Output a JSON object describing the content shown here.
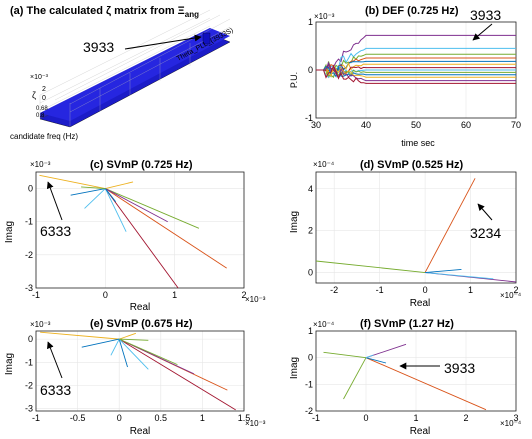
{
  "figure": {
    "panel_a": {
      "title": "(a) The calculated ζ matrix from Ξ",
      "title_sub": "ang",
      "callout": "3933",
      "z_exp": "×10⁻³",
      "z_label": "ζ",
      "z_ticks": [
        "2",
        "0"
      ],
      "bottom_ticks": [
        "0.68",
        "0.8"
      ],
      "x_axis_label": "candidate freq (Hz)",
      "row_label": "Theta_PLL_(3933S)"
    },
    "panel_b": {
      "title": "(b) DEF (0.725 Hz)",
      "callout": "3933",
      "exp": "×10⁻³",
      "ylabel": "P.U.",
      "xlabel": "time sec"
    },
    "panel_c": {
      "title": "(c) SVmP (0.725 Hz)",
      "callout": "6333",
      "ylabel": "Imag",
      "xlabel": "Real",
      "y_exp": "×10⁻³",
      "x_exp": "×10⁻³"
    },
    "panel_d": {
      "title": "(d) SVmP (0.525 Hz)",
      "callout": "3234",
      "ylabel": "Imag",
      "xlabel": "Real",
      "y_exp": "×10⁻⁴",
      "x_exp": "×10⁻⁴"
    },
    "panel_e": {
      "title": "(e) SVmP (0.675 Hz)",
      "callout": "6333",
      "ylabel": "Imag",
      "xlabel": "Real",
      "y_exp": "×10⁻³",
      "x_exp": "×10⁻³"
    },
    "panel_f": {
      "title": "(f) SVmP (1.27 Hz)",
      "callout": "3933",
      "ylabel": "Imag",
      "xlabel": "Real",
      "y_exp": "×10⁻⁴",
      "x_exp": "×10⁻⁴"
    }
  },
  "chart_data": [
    {
      "type": "line",
      "panel": "b",
      "title": "(b) DEF (0.725 Hz)",
      "xlabel": "time sec",
      "ylabel": "P.U.",
      "xlim": [
        30,
        70
      ],
      "ylim": [
        -1,
        1
      ],
      "xticks": [
        30,
        40,
        50,
        60,
        70
      ],
      "yticks": [
        -1,
        0,
        1
      ],
      "grid": true,
      "series": [
        {
          "color": "#7e2f8e",
          "final": 0.72
        },
        {
          "color": "#4dbeee",
          "final": 0.45
        },
        {
          "color": "#77ac30",
          "final": 0.33
        },
        {
          "color": "#d95319",
          "final": 0.25
        },
        {
          "color": "#0072bd",
          "final": 0.18
        },
        {
          "color": "#edb120",
          "final": 0.12
        },
        {
          "color": "#a2142f",
          "final": 0.05
        },
        {
          "color": "#4dbeee",
          "final": 0.0
        },
        {
          "color": "#77ac30",
          "final": -0.05
        },
        {
          "color": "#0072bd",
          "final": -0.1
        },
        {
          "color": "#edb120",
          "final": -0.15
        },
        {
          "color": "#7e2f8e",
          "final": -0.22
        },
        {
          "color": "#a2142f",
          "final": -0.28
        }
      ]
    },
    {
      "type": "compass",
      "panel": "c",
      "title": "(c) SVmP (0.725 Hz)",
      "xlabel": "Real",
      "ylabel": "Imag",
      "xlim": [
        -1,
        2
      ],
      "ylim": [
        -3,
        0.5
      ],
      "xticks": [
        -1,
        0,
        1,
        2
      ],
      "yticks": [
        -3,
        -2,
        -1,
        0
      ],
      "grid": true,
      "vectors": [
        {
          "x": -0.95,
          "y": 0.4,
          "color": "#edb120"
        },
        {
          "x": 1.75,
          "y": -2.4,
          "color": "#d95319"
        },
        {
          "x": 1.05,
          "y": -3.0,
          "color": "#a2142f"
        },
        {
          "x": 1.35,
          "y": -1.2,
          "color": "#77ac30"
        },
        {
          "x": 0.9,
          "y": -1.0,
          "color": "#7e2f8e"
        },
        {
          "x": 0.3,
          "y": -1.3,
          "color": "#4dbeee"
        },
        {
          "x": -0.3,
          "y": -0.6,
          "color": "#4dbeee"
        },
        {
          "x": -0.5,
          "y": -0.2,
          "color": "#0072bd"
        },
        {
          "x": 0.4,
          "y": 0.2,
          "color": "#edb120"
        },
        {
          "x": -0.35,
          "y": 0.05,
          "color": "#77ac30"
        },
        {
          "x": 0.15,
          "y": -0.4,
          "color": "#0072bd"
        }
      ]
    },
    {
      "type": "compass",
      "panel": "d",
      "title": "(d) SVmP (0.525 Hz)",
      "xlabel": "Real",
      "ylabel": "Imag",
      "xlim": [
        -2.4,
        2
      ],
      "ylim": [
        -0.5,
        4.8
      ],
      "xticks": [
        -2,
        -1,
        0,
        1,
        2
      ],
      "yticks": [
        0,
        2,
        4
      ],
      "grid": true,
      "vectors": [
        {
          "x": 1.1,
          "y": 4.5,
          "color": "#d95319"
        },
        {
          "x": -2.4,
          "y": 0.55,
          "color": "#77ac30"
        },
        {
          "x": 2.0,
          "y": -0.45,
          "color": "#7e2f8e"
        },
        {
          "x": 1.5,
          "y": -0.3,
          "color": "#4dbeee"
        },
        {
          "x": 0.8,
          "y": 0.15,
          "color": "#0072bd"
        }
      ]
    },
    {
      "type": "compass",
      "panel": "e",
      "title": "(e) SVmP (0.675 Hz)",
      "xlabel": "Real",
      "ylabel": "Imag",
      "xlim": [
        -1,
        1.5
      ],
      "ylim": [
        -3.1,
        0.35
      ],
      "xticks": [
        -1,
        -0.5,
        0,
        0.5,
        1,
        1.5
      ],
      "yticks": [
        -3,
        -2,
        -1,
        0
      ],
      "grid": true,
      "vectors": [
        {
          "x": -0.95,
          "y": 0.3,
          "color": "#edb120"
        },
        {
          "x": 1.4,
          "y": -3.05,
          "color": "#a2142f"
        },
        {
          "x": 1.3,
          "y": -2.2,
          "color": "#d95319"
        },
        {
          "x": 0.9,
          "y": -1.5,
          "color": "#7e2f8e"
        },
        {
          "x": 0.7,
          "y": -1.1,
          "color": "#77ac30"
        },
        {
          "x": 0.35,
          "y": -1.3,
          "color": "#4dbeee"
        },
        {
          "x": 0.1,
          "y": -1.2,
          "color": "#0072bd"
        },
        {
          "x": -0.1,
          "y": -0.7,
          "color": "#4dbeee"
        },
        {
          "x": -0.45,
          "y": -0.35,
          "color": "#0072bd"
        },
        {
          "x": 0.2,
          "y": 0.25,
          "color": "#edb120"
        },
        {
          "x": 0.35,
          "y": -0.05,
          "color": "#77ac30"
        }
      ]
    },
    {
      "type": "compass",
      "panel": "f",
      "title": "(f) SVmP (1.27 Hz)",
      "xlabel": "Real",
      "ylabel": "Imag",
      "xlim": [
        -1,
        3
      ],
      "ylim": [
        -2,
        1
      ],
      "xticks": [
        -1,
        0,
        1,
        2,
        3
      ],
      "yticks": [
        -2,
        -1,
        0,
        1
      ],
      "grid": true,
      "vectors": [
        {
          "x": 2.4,
          "y": -1.95,
          "color": "#d95319"
        },
        {
          "x": -0.85,
          "y": 0.2,
          "color": "#77ac30"
        },
        {
          "x": 0.8,
          "y": 0.5,
          "color": "#7e2f8e"
        },
        {
          "x": -0.45,
          "y": -1.55,
          "color": "#77ac30"
        },
        {
          "x": 0.4,
          "y": -0.2,
          "color": "#0072bd"
        },
        {
          "x": 0.15,
          "y": 0.1,
          "color": "#4dbeee"
        }
      ]
    }
  ]
}
